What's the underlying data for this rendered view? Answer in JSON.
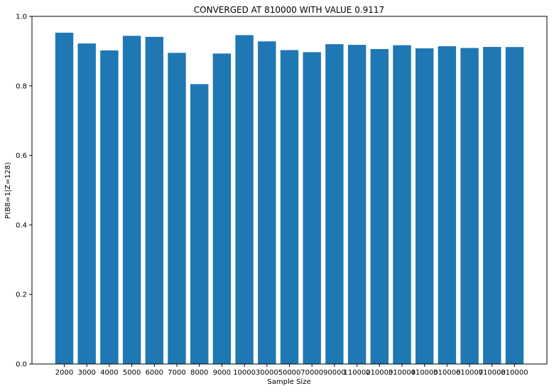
{
  "chart_data": {
    "type": "bar",
    "title": "CONVERGED AT 810000 WITH VALUE 0.9117",
    "xlabel": "Sample Size",
    "ylabel": "P(B8=1|Z=128)",
    "categories": [
      "2000",
      "3000",
      "4000",
      "5000",
      "6000",
      "7000",
      "8000",
      "9000",
      "10000",
      "30000",
      "50000",
      "70000",
      "90000",
      "110000",
      "210000",
      "310000",
      "410000",
      "510000",
      "610000",
      "710000",
      "810000"
    ],
    "values": [
      0.953,
      0.922,
      0.902,
      0.944,
      0.941,
      0.895,
      0.805,
      0.893,
      0.946,
      0.928,
      0.903,
      0.897,
      0.92,
      0.918,
      0.906,
      0.917,
      0.908,
      0.914,
      0.909,
      0.912,
      0.9117
    ],
    "ylim": [
      0,
      1.0
    ],
    "yticks": [
      "0.0",
      "0.2",
      "0.4",
      "0.6",
      "0.8",
      "1.0"
    ],
    "grid": false,
    "bar_color": "#1f77b4"
  }
}
